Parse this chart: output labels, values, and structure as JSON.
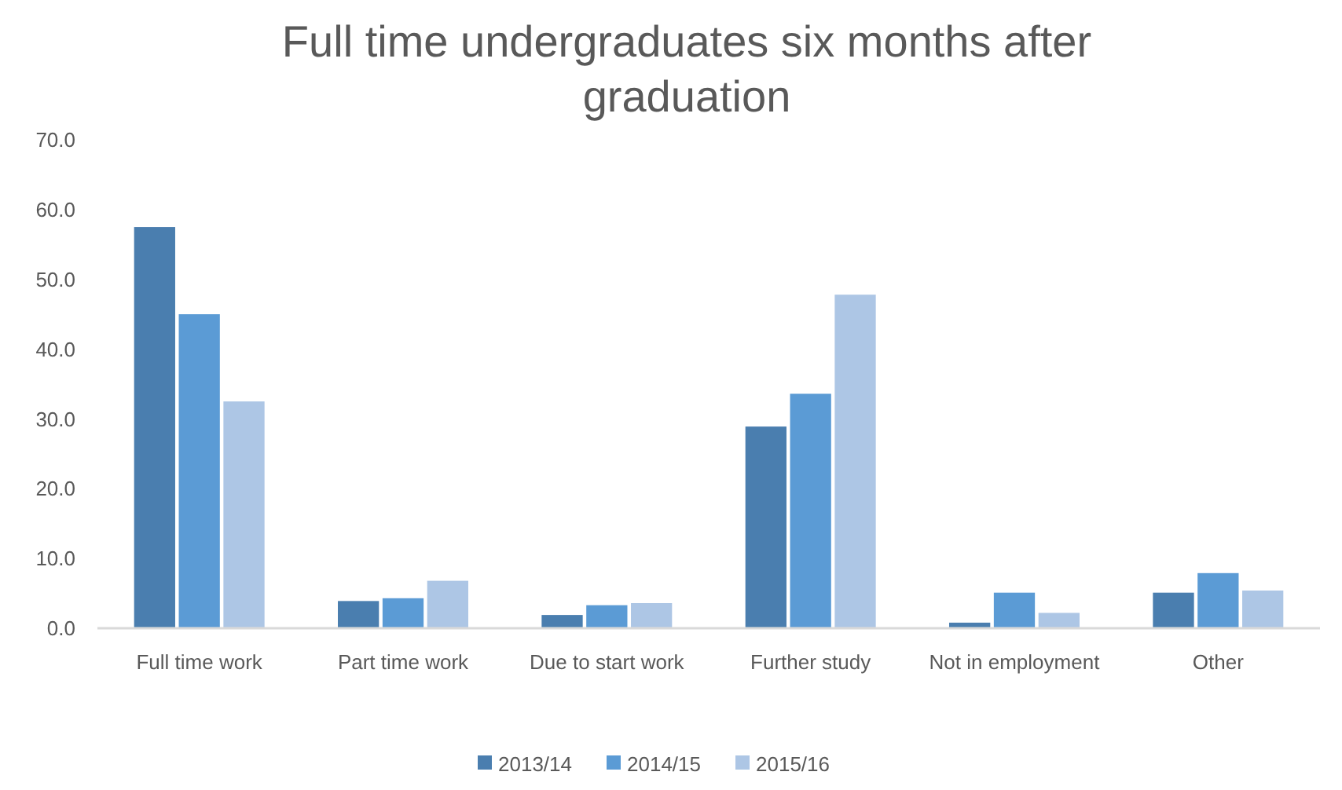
{
  "chart_data": {
    "type": "bar",
    "title": "Full time undergraduates six months after graduation",
    "categories": [
      "Full time work",
      "Part time work",
      "Due to start work",
      "Further study",
      "Not in employment",
      "Other"
    ],
    "series": [
      {
        "name": "2013/14",
        "color": "#4a7eaf",
        "values": [
          57.5,
          3.9,
          1.9,
          28.9,
          0.8,
          5.1
        ]
      },
      {
        "name": "2014/15",
        "color": "#5b9bd5",
        "values": [
          45.0,
          4.3,
          3.3,
          33.6,
          5.1,
          7.9
        ]
      },
      {
        "name": "2015/16",
        "color": "#adc6e5",
        "values": [
          32.5,
          6.8,
          3.6,
          47.8,
          2.2,
          5.4
        ]
      }
    ],
    "ylim": [
      0,
      70
    ],
    "yticks": [
      {
        "value": 0,
        "label": "0.0"
      },
      {
        "value": 10,
        "label": "10.0"
      },
      {
        "value": 20,
        "label": "20.0"
      },
      {
        "value": 30,
        "label": "30.0"
      },
      {
        "value": 40,
        "label": "40.0"
      },
      {
        "value": 50,
        "label": "50.0"
      },
      {
        "value": 60,
        "label": "60.0"
      },
      {
        "value": 70,
        "label": "70.0"
      }
    ],
    "grid": false,
    "legend": "bottom"
  }
}
